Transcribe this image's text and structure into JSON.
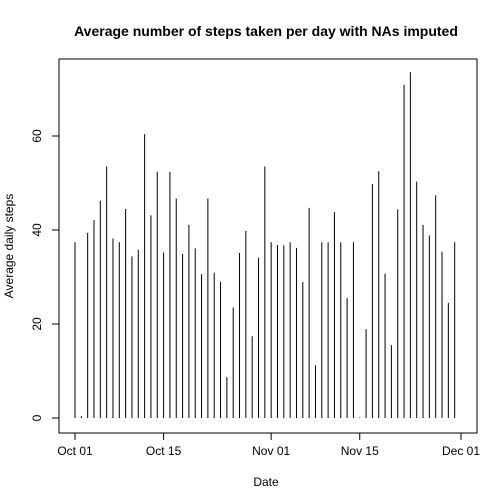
{
  "chart_data": {
    "type": "bar",
    "style": "histogram-spikes",
    "title": "Average number of steps taken per day with NAs imputed",
    "xlabel": "Date",
    "ylabel": "Average daily steps",
    "x_start": "2012-10-01",
    "x": [
      "2012-10-01",
      "2012-10-02",
      "2012-10-03",
      "2012-10-04",
      "2012-10-05",
      "2012-10-06",
      "2012-10-07",
      "2012-10-08",
      "2012-10-09",
      "2012-10-10",
      "2012-10-11",
      "2012-10-12",
      "2012-10-13",
      "2012-10-14",
      "2012-10-15",
      "2012-10-16",
      "2012-10-17",
      "2012-10-18",
      "2012-10-19",
      "2012-10-20",
      "2012-10-21",
      "2012-10-22",
      "2012-10-23",
      "2012-10-24",
      "2012-10-25",
      "2012-10-26",
      "2012-10-27",
      "2012-10-28",
      "2012-10-29",
      "2012-10-30",
      "2012-10-31",
      "2012-11-01",
      "2012-11-02",
      "2012-11-03",
      "2012-11-04",
      "2012-11-05",
      "2012-11-06",
      "2012-11-07",
      "2012-11-08",
      "2012-11-09",
      "2012-11-10",
      "2012-11-11",
      "2012-11-12",
      "2012-11-13",
      "2012-11-14",
      "2012-11-15",
      "2012-11-16",
      "2012-11-17",
      "2012-11-18",
      "2012-11-19",
      "2012-11-20",
      "2012-11-21",
      "2012-11-22",
      "2012-11-23",
      "2012-11-24",
      "2012-11-25",
      "2012-11-26",
      "2012-11-27",
      "2012-11-28",
      "2012-11-29",
      "2012-11-30"
    ],
    "values": [
      37.4,
      0.4,
      39.4,
      42.1,
      46.2,
      53.5,
      38.2,
      37.4,
      44.5,
      34.4,
      35.8,
      60.4,
      43.1,
      52.4,
      35.2,
      52.4,
      46.7,
      34.9,
      41.1,
      36.1,
      30.6,
      46.7,
      30.9,
      29.0,
      8.7,
      23.5,
      35.1,
      39.8,
      17.4,
      34.1,
      53.5,
      37.4,
      36.8,
      36.7,
      37.4,
      36.2,
      28.9,
      44.7,
      11.2,
      37.4,
      37.4,
      43.8,
      37.4,
      25.5,
      37.4,
      0.1,
      18.9,
      49.8,
      52.5,
      30.7,
      15.5,
      44.4,
      70.9,
      73.6,
      50.3,
      41.1,
      38.8,
      47.4,
      35.4,
      24.5,
      37.4
    ],
    "x_ticks": [
      "Oct 01",
      "Oct 15",
      "Nov 01",
      "Nov 15",
      "Dec 01"
    ],
    "x_tick_dates": [
      "2012-10-01",
      "2012-10-15",
      "2012-11-01",
      "2012-11-15",
      "2012-12-01"
    ],
    "y_ticks": [
      "0",
      "20",
      "40",
      "60"
    ],
    "y_tick_values": [
      0,
      20,
      40,
      60
    ],
    "ylim": [
      0,
      76
    ],
    "xlim": [
      "2012-10-01",
      "2012-12-01"
    ],
    "grid": false,
    "legend": "none"
  }
}
